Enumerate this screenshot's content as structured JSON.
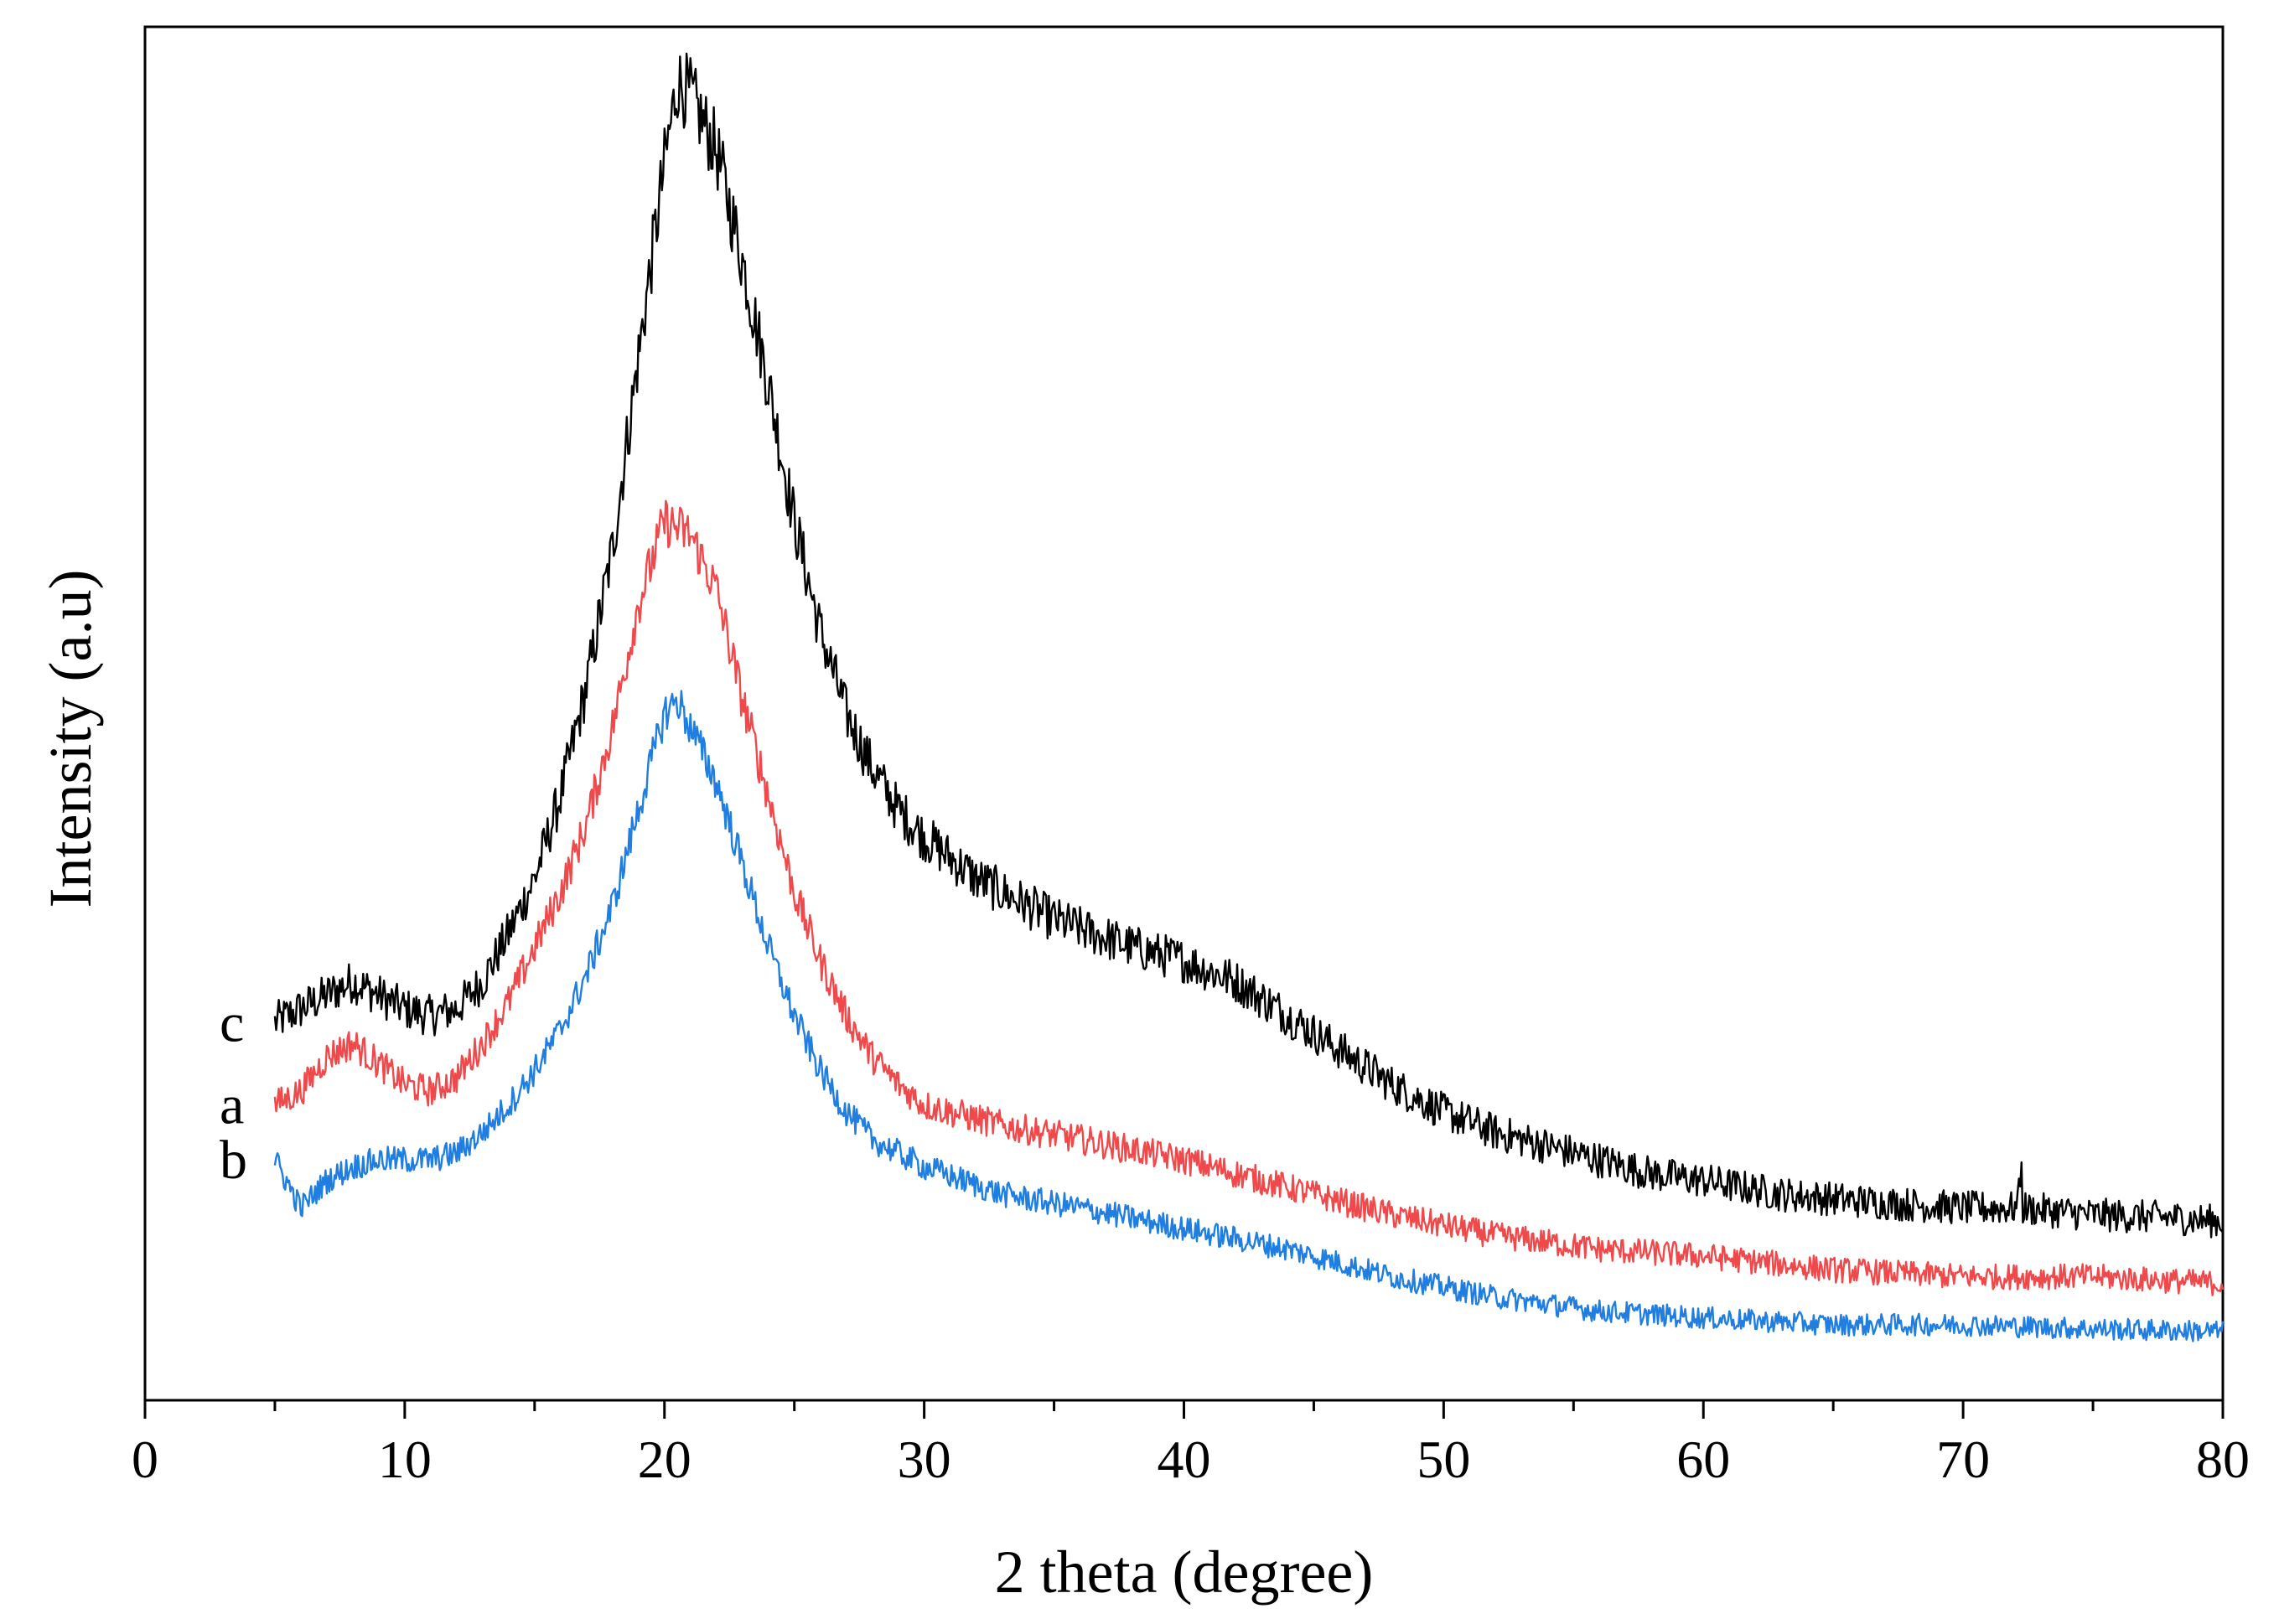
{
  "chart_data": {
    "type": "line",
    "title": "",
    "xlabel": "2 theta (degree)",
    "ylabel": "Intensity (a.u)",
    "xlim": [
      0,
      80
    ],
    "ylim": [
      0,
      100
    ],
    "xticks": [
      "0",
      "10",
      "20",
      "30",
      "40",
      "50",
      "60",
      "70",
      "80"
    ],
    "yticks_shown": false,
    "grid": false,
    "legend": "inline labels at left",
    "series": [
      {
        "name": "c",
        "color": "#000000",
        "noise": 1.6,
        "points": [
          [
            5,
            27.5
          ],
          [
            6,
            28.5
          ],
          [
            7,
            29.5
          ],
          [
            8,
            30.5
          ],
          [
            9,
            29.5
          ],
          [
            10,
            28.5
          ],
          [
            11,
            28
          ],
          [
            12,
            28.5
          ],
          [
            13,
            30.5
          ],
          [
            14,
            34
          ],
          [
            15,
            38
          ],
          [
            16,
            44
          ],
          [
            17,
            52
          ],
          [
            18,
            62
          ],
          [
            19,
            76
          ],
          [
            20,
            90
          ],
          [
            20.5,
            96
          ],
          [
            21,
            95
          ],
          [
            22,
            91
          ],
          [
            23,
            83
          ],
          [
            24,
            74
          ],
          [
            25,
            64
          ],
          [
            26,
            56
          ],
          [
            27,
            50
          ],
          [
            28,
            46
          ],
          [
            29,
            43
          ],
          [
            30,
            41
          ],
          [
            32,
            38
          ],
          [
            35,
            35
          ],
          [
            38,
            33
          ],
          [
            40,
            32
          ],
          [
            42,
            30.5
          ],
          [
            44,
            28
          ],
          [
            46,
            25.5
          ],
          [
            48,
            23
          ],
          [
            50,
            21
          ],
          [
            52,
            19.5
          ],
          [
            55,
            18
          ],
          [
            58,
            16.5
          ],
          [
            60,
            16
          ],
          [
            63,
            15
          ],
          [
            66,
            14.5
          ],
          [
            70,
            14
          ],
          [
            72.2,
            14
          ],
          [
            75,
            13.5
          ],
          [
            78,
            13.3
          ],
          [
            80,
            13
          ]
        ]
      },
      {
        "name": "a",
        "color": "#f0494b",
        "noise": 1.3,
        "points": [
          [
            5,
            21.5
          ],
          [
            6,
            22.5
          ],
          [
            7,
            25
          ],
          [
            8,
            26
          ],
          [
            9,
            24.5
          ],
          [
            10,
            23
          ],
          [
            11,
            22.5
          ],
          [
            12,
            23.5
          ],
          [
            13,
            26
          ],
          [
            14,
            29
          ],
          [
            15,
            33
          ],
          [
            16,
            37
          ],
          [
            17,
            42
          ],
          [
            18,
            49
          ],
          [
            19,
            58
          ],
          [
            20,
            64
          ],
          [
            21,
            63
          ],
          [
            22,
            59
          ],
          [
            23,
            51
          ],
          [
            24,
            44
          ],
          [
            25,
            37
          ],
          [
            26,
            32
          ],
          [
            27,
            28
          ],
          [
            28,
            25
          ],
          [
            29,
            23
          ],
          [
            30,
            21.5
          ],
          [
            33,
            20
          ],
          [
            36,
            19
          ],
          [
            40,
            17.5
          ],
          [
            44,
            15.5
          ],
          [
            48,
            13.5
          ],
          [
            52,
            12
          ],
          [
            56,
            11
          ],
          [
            60,
            10.5
          ],
          [
            65,
            9.5
          ],
          [
            70,
            9
          ],
          [
            75,
            9
          ],
          [
            80,
            8.5
          ]
        ]
      },
      {
        "name": "b",
        "color": "#1f7ee0",
        "noise": 1.2,
        "points": [
          [
            5,
            17.5
          ],
          [
            6,
            14
          ],
          [
            7,
            16
          ],
          [
            8,
            17
          ],
          [
            9,
            17.5
          ],
          [
            10,
            17.5
          ],
          [
            11,
            17.5
          ],
          [
            12,
            18
          ],
          [
            13,
            19.5
          ],
          [
            14,
            21.5
          ],
          [
            15,
            24
          ],
          [
            16,
            27
          ],
          [
            17,
            31
          ],
          [
            18,
            36
          ],
          [
            19,
            43
          ],
          [
            20,
            50
          ],
          [
            20.5,
            51
          ],
          [
            21,
            49
          ],
          [
            22,
            45
          ],
          [
            23,
            39
          ],
          [
            24,
            33
          ],
          [
            25,
            28
          ],
          [
            26,
            24
          ],
          [
            27,
            21
          ],
          [
            28,
            19
          ],
          [
            30,
            17
          ],
          [
            33,
            15
          ],
          [
            36,
            14
          ],
          [
            40,
            12.5
          ],
          [
            44,
            11
          ],
          [
            48,
            9
          ],
          [
            52,
            7.5
          ],
          [
            56,
            6.5
          ],
          [
            60,
            6
          ],
          [
            65,
            5.5
          ],
          [
            70,
            5.5
          ],
          [
            75,
            5.2
          ],
          [
            80,
            5
          ]
        ]
      }
    ]
  }
}
